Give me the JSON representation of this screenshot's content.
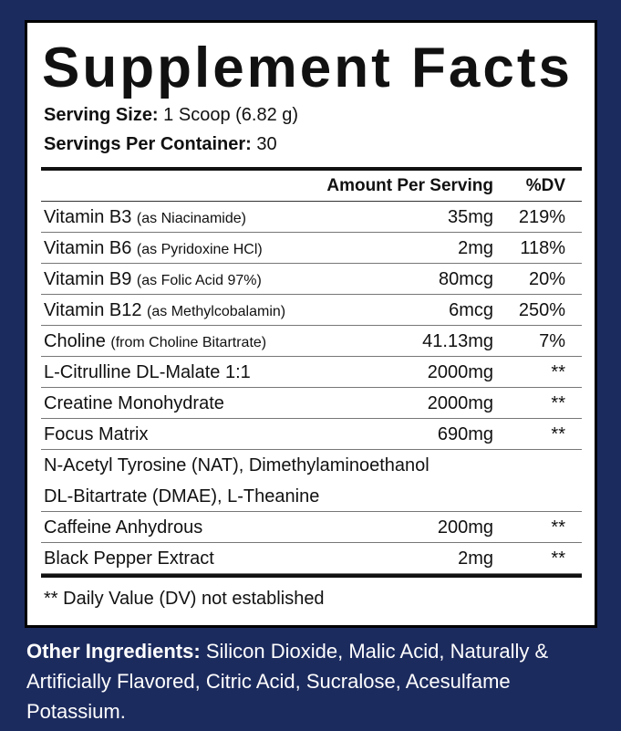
{
  "title": "Supplement Facts",
  "serving_size": {
    "label": "Serving Size:",
    "value": "1 Scoop (6.82 g)"
  },
  "servings_per_container": {
    "label": "Servings Per Container:",
    "value": "30"
  },
  "table": {
    "header": {
      "amount": "Amount Per Serving",
      "dv": "%DV"
    },
    "rows": [
      {
        "name": "Vitamin B3",
        "note": "(as Niacinamide)",
        "amount": "35mg",
        "dv": "219%"
      },
      {
        "name": "Vitamin B6",
        "note": "(as Pyridoxine HCl)",
        "amount": "2mg",
        "dv": "118%"
      },
      {
        "name": "Vitamin B9",
        "note": "(as Folic Acid 97%)",
        "amount": "80mcg",
        "dv": "20%"
      },
      {
        "name": "Vitamin B12",
        "note": "(as Methylcobalamin)",
        "amount": "6mcg",
        "dv": "250%"
      },
      {
        "name": "Choline",
        "note": "(from Choline Bitartrate)",
        "amount": "41.13mg",
        "dv": "7%"
      },
      {
        "name": "L-Citrulline DL-Malate 1:1",
        "amount": "2000mg",
        "dv": "**"
      },
      {
        "name": "Creatine Monohydrate",
        "amount": "2000mg",
        "dv": "**"
      },
      {
        "name": "Focus Matrix",
        "amount": "690mg",
        "dv": "**"
      },
      {
        "lines": [
          "N-Acetyl Tyrosine (NAT), Dimethylaminoethanol",
          "DL-Bitartrate (DMAE), L-Theanine"
        ]
      },
      {
        "name": "Caffeine Anhydrous",
        "amount": "200mg",
        "dv": "**"
      },
      {
        "name": "Black Pepper Extract",
        "amount": "2mg",
        "dv": "**"
      }
    ]
  },
  "footnote": "** Daily Value (DV) not established",
  "other_ingredients": {
    "label": "Other Ingredients:",
    "text": "Silicon Dioxide, Malic Acid, Naturally & Artificially Flavored, Citric Acid, Sucralose, Acesulfame Potassium."
  }
}
